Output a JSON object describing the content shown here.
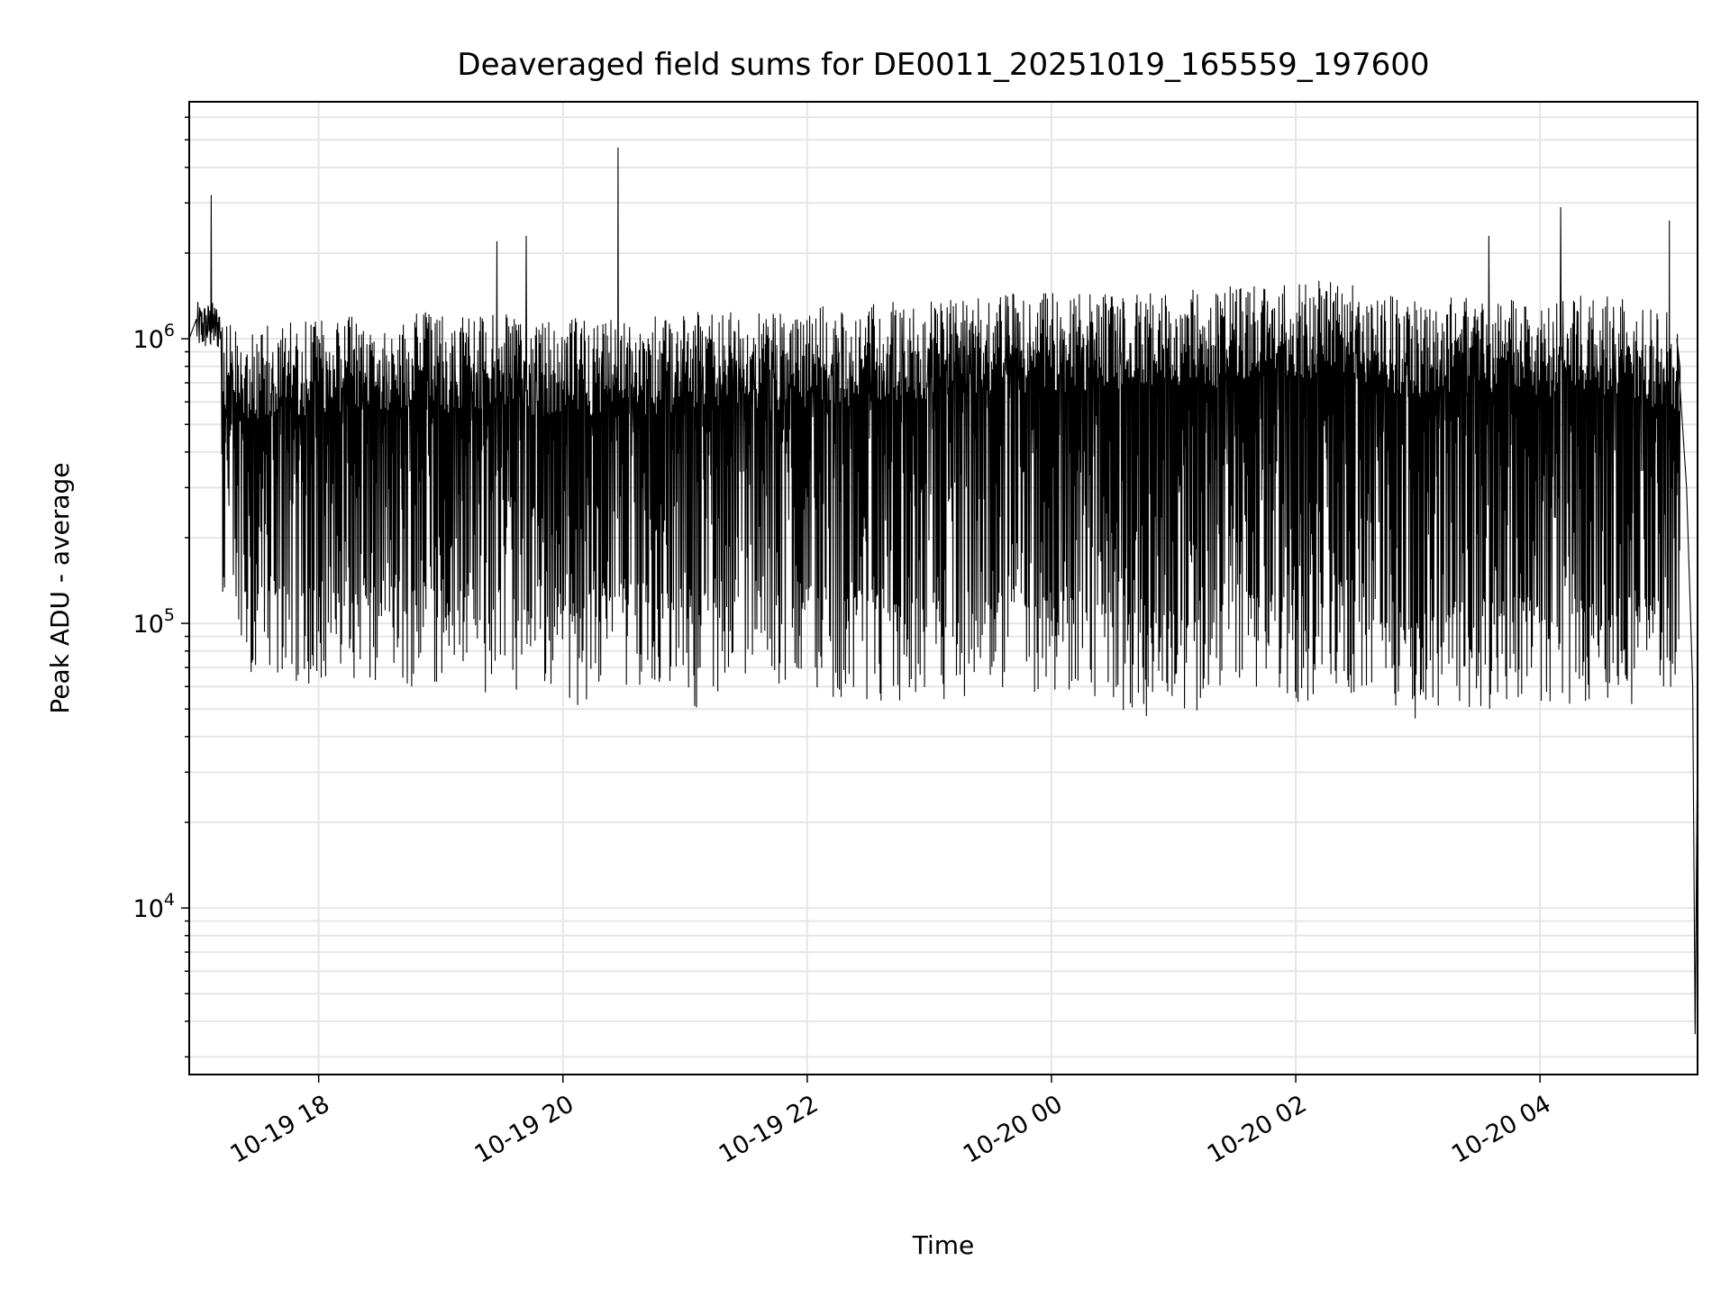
{
  "chart_data": {
    "type": "line",
    "title": "Deaveraged field sums for DE0011_20251019_165559_197600",
    "xlabel": "Time",
    "ylabel": "Peak ADU - average",
    "yscale": "log",
    "ylim": [
      2600,
      6800000
    ],
    "xlim_hours": [
      16.94,
      29.29
    ],
    "grid": true,
    "x_tick_hours": [
      18,
      20,
      22,
      24,
      26,
      28
    ],
    "x_tick_labels": [
      "10-19 18",
      "10-19 20",
      "10-19 22",
      "10-20 00",
      "10-20 02",
      "10-20 04"
    ],
    "y_ticks": [
      {
        "value": 1000000,
        "base": "10",
        "exp": "6"
      },
      {
        "value": 100000,
        "base": "10",
        "exp": "5"
      },
      {
        "value": 10000,
        "base": "10",
        "exp": "4"
      }
    ],
    "series": [
      {
        "name": "Peak ADU - average",
        "color": "#000000",
        "note": "dense noisy signal, envelope per 15-minute bin",
        "bin_start_hours": 17.0,
        "bin_width_hours": 0.25,
        "upper": [
          1100000,
          1150000,
          1150000,
          1200000,
          1200000,
          1200000,
          1250000,
          1250000,
          1200000,
          1250000,
          1200000,
          1150000,
          1200000,
          1200000,
          1200000,
          1200000,
          1250000,
          1250000,
          1250000,
          1250000,
          1300000,
          1300000,
          1350000,
          1350000,
          1400000,
          1400000,
          1450000,
          1450000,
          1450000,
          1450000,
          1500000,
          1500000,
          1550000,
          1500000,
          1600000,
          1600000,
          1600000,
          1600000,
          1450000,
          1400000,
          1400000,
          1400000,
          1400000,
          1400000,
          1400000,
          1450000,
          1400000,
          1300000,
          1250000,
          1200000
        ],
        "lower": [
          150000,
          70000,
          60000,
          60000,
          60000,
          55000,
          60000,
          60000,
          65000,
          55000,
          55000,
          60000,
          50000,
          60000,
          60000,
          55000,
          50000,
          60000,
          60000,
          55000,
          55000,
          55000,
          50000,
          45000,
          50000,
          45000,
          55000,
          50000,
          55000,
          50000,
          45000,
          45000,
          45000,
          55000,
          55000,
          50000,
          50000,
          55000,
          60000,
          45000,
          45000,
          50000,
          50000,
          50000,
          50000,
          50000,
          50000,
          50000,
          60000,
          90000
        ],
        "spikes": [
          {
            "hour": 17.12,
            "value": 3200000
          },
          {
            "hour": 19.46,
            "value": 2200000
          },
          {
            "hour": 19.7,
            "value": 2300000
          },
          {
            "hour": 20.45,
            "value": 4700000
          },
          {
            "hour": 27.58,
            "value": 2300000
          },
          {
            "hour": 28.17,
            "value": 2900000
          },
          {
            "hour": 29.06,
            "value": 2600000
          }
        ],
        "end_drop": {
          "hour": 29.27,
          "value": 3600,
          "final": 40000
        }
      }
    ]
  }
}
